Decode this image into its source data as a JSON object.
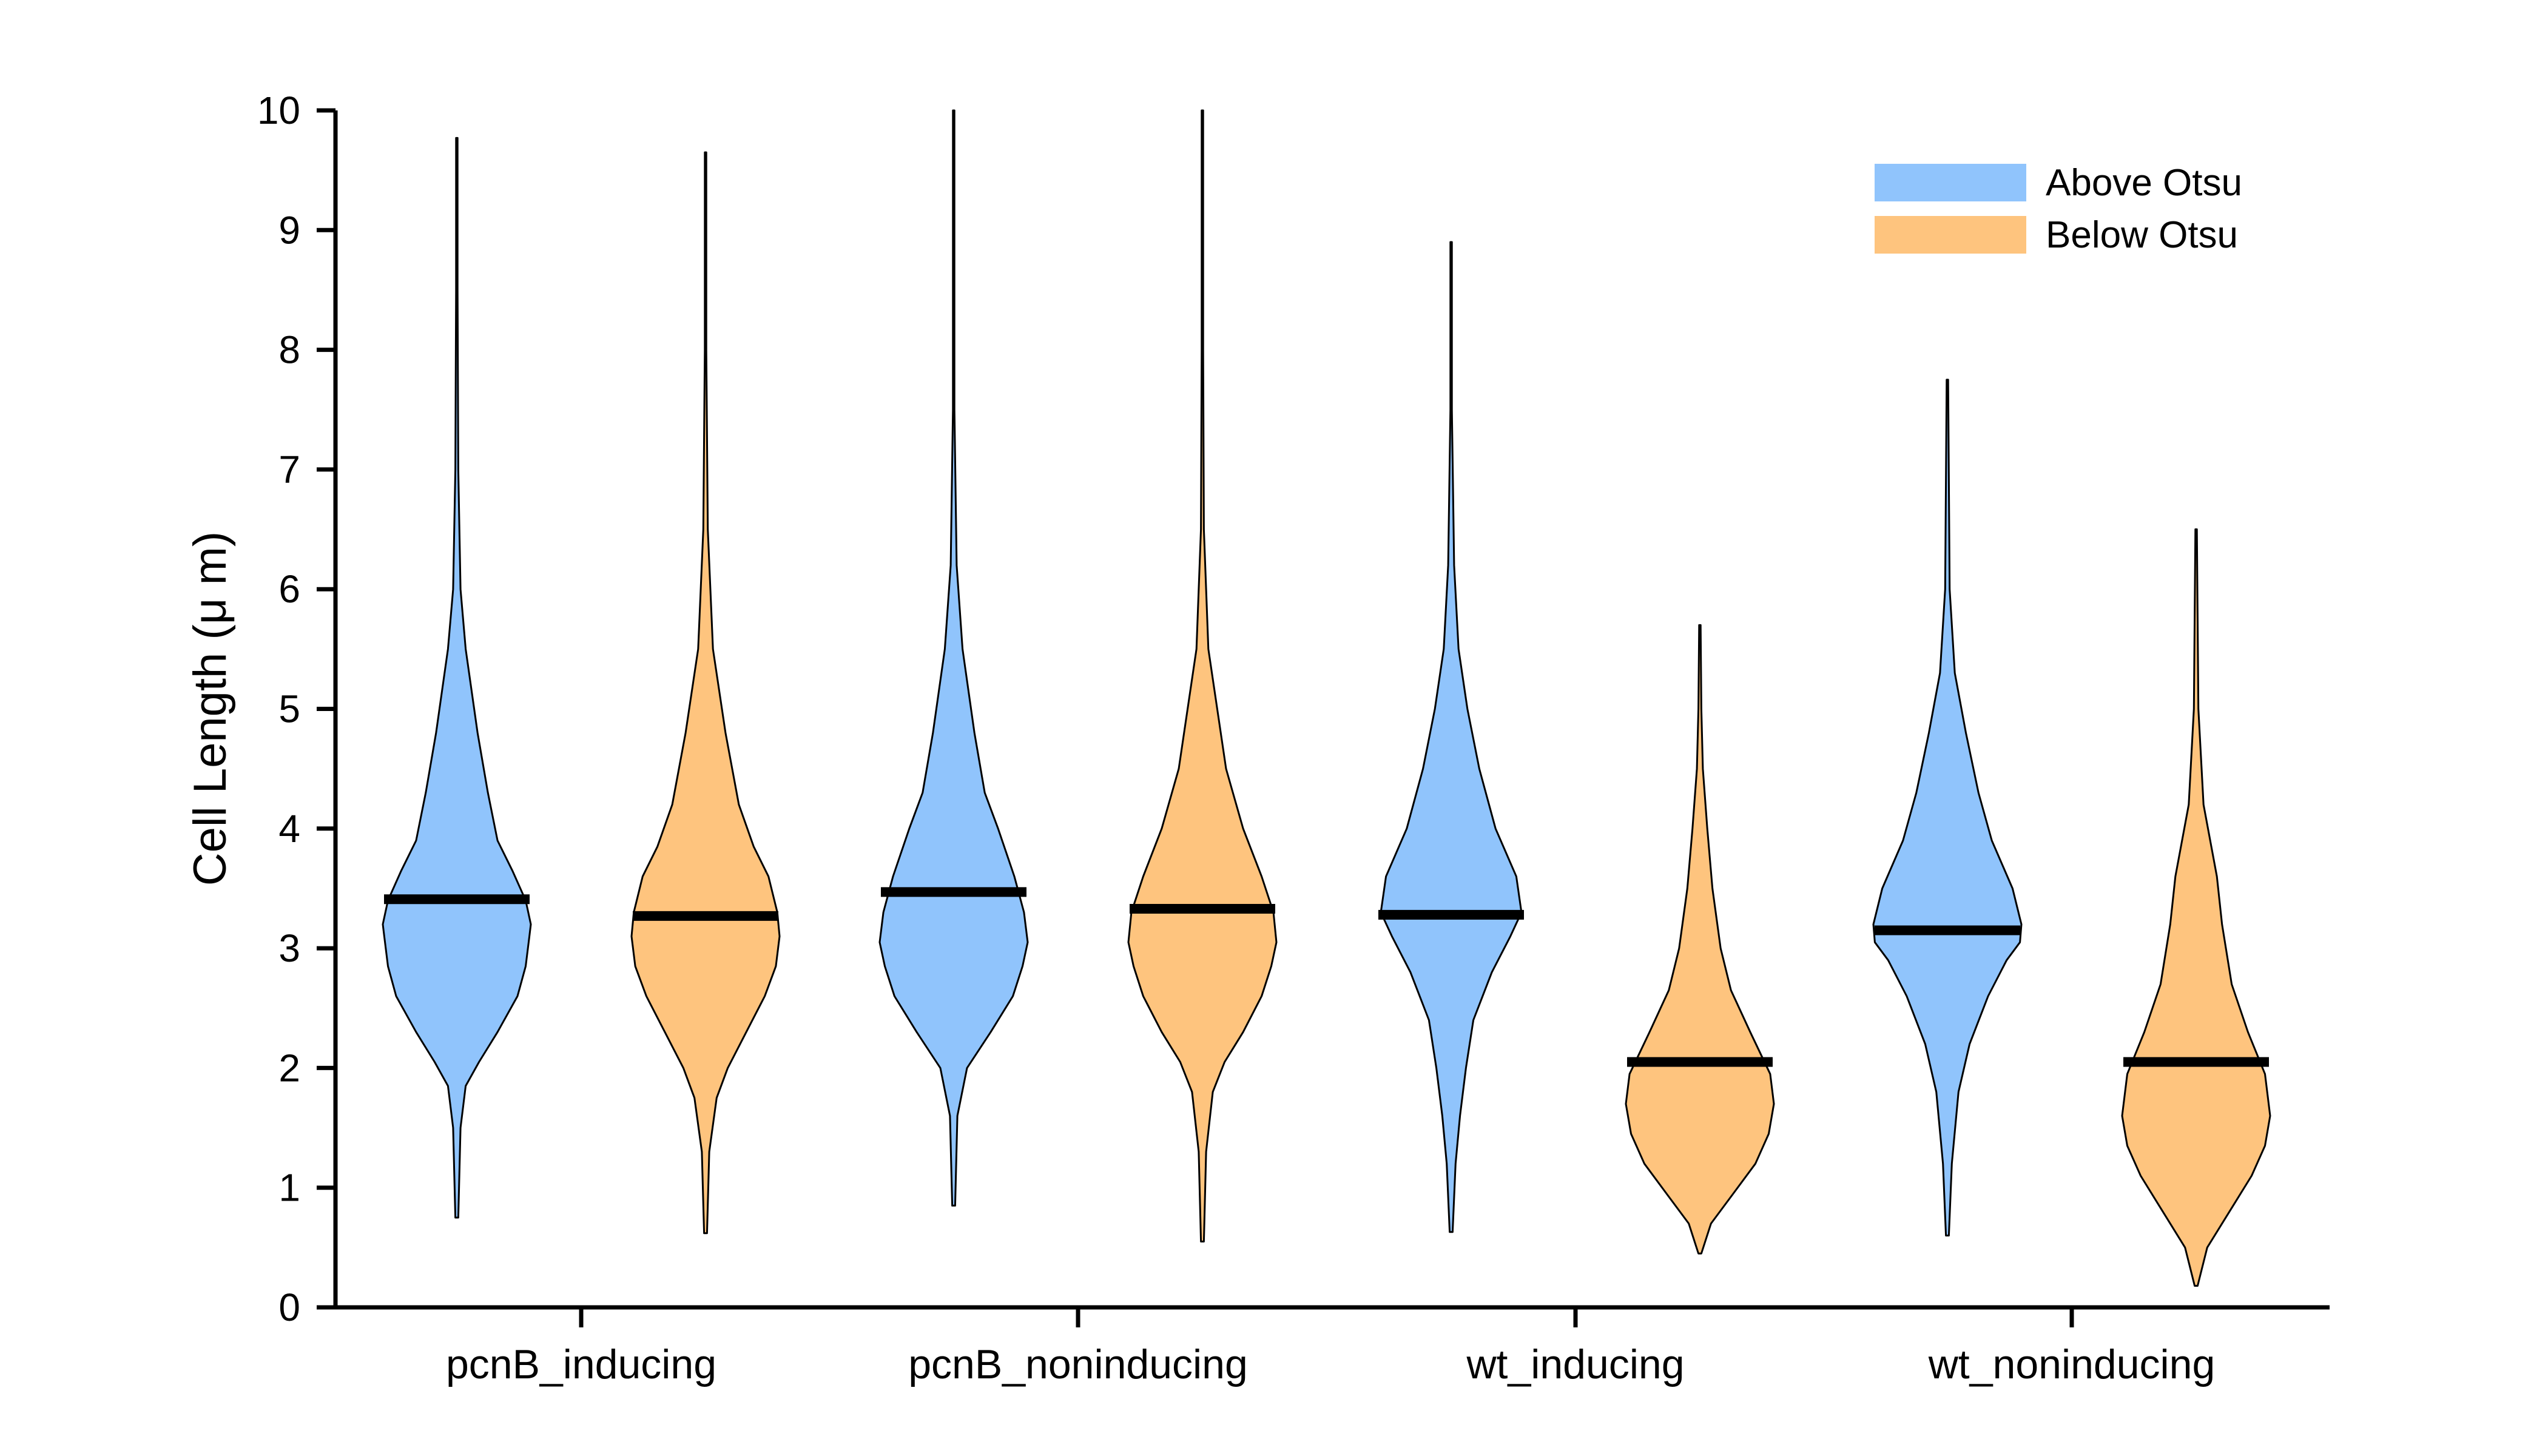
{
  "chart_data": {
    "type": "violin",
    "ylabel": "Cell Length (μ m)",
    "ylim": [
      0,
      10
    ],
    "yticks": [
      0,
      1,
      2,
      3,
      4,
      5,
      6,
      7,
      8,
      9,
      10
    ],
    "categories": [
      "pcnB_inducing",
      "pcnB_noninducing",
      "wt_inducing",
      "wt_noninducing"
    ],
    "legend": {
      "position": "top-right",
      "entries": [
        {
          "label": "Above Otsu",
          "color": "#90C4FC"
        },
        {
          "label": "Below Otsu",
          "color": "#FEC47E"
        }
      ]
    },
    "series": [
      {
        "category": "pcnB_inducing",
        "group": "Above Otsu",
        "color": "#90C4FC",
        "min": 0.75,
        "max": 9.77,
        "median": 3.41,
        "profile": [
          [
            0.75,
            0.02
          ],
          [
            1.5,
            0.05
          ],
          [
            1.85,
            0.12
          ],
          [
            2.05,
            0.3
          ],
          [
            2.3,
            0.55
          ],
          [
            2.6,
            0.82
          ],
          [
            2.85,
            0.93
          ],
          [
            3.1,
            0.98
          ],
          [
            3.2,
            1.0
          ],
          [
            3.4,
            0.93
          ],
          [
            3.65,
            0.75
          ],
          [
            3.9,
            0.55
          ],
          [
            4.3,
            0.42
          ],
          [
            4.8,
            0.28
          ],
          [
            5.5,
            0.12
          ],
          [
            6.0,
            0.05
          ],
          [
            7.0,
            0.02
          ],
          [
            8.5,
            0.01
          ],
          [
            9.77,
            0.005
          ]
        ]
      },
      {
        "category": "pcnB_inducing",
        "group": "Below Otsu",
        "color": "#FEC47E",
        "min": 0.62,
        "max": 9.65,
        "median": 3.27,
        "profile": [
          [
            0.62,
            0.02
          ],
          [
            1.3,
            0.05
          ],
          [
            1.75,
            0.15
          ],
          [
            2.0,
            0.3
          ],
          [
            2.3,
            0.55
          ],
          [
            2.6,
            0.8
          ],
          [
            2.85,
            0.95
          ],
          [
            3.1,
            1.0
          ],
          [
            3.3,
            0.97
          ],
          [
            3.6,
            0.85
          ],
          [
            3.85,
            0.65
          ],
          [
            4.2,
            0.45
          ],
          [
            4.8,
            0.27
          ],
          [
            5.5,
            0.1
          ],
          [
            6.5,
            0.03
          ],
          [
            8.0,
            0.01
          ],
          [
            9.65,
            0.005
          ]
        ]
      },
      {
        "category": "pcnB_noninducing",
        "group": "Above Otsu",
        "color": "#90C4FC",
        "min": 0.85,
        "max": 10.0,
        "median": 3.47,
        "profile": [
          [
            0.85,
            0.02
          ],
          [
            1.6,
            0.05
          ],
          [
            2.0,
            0.18
          ],
          [
            2.3,
            0.5
          ],
          [
            2.6,
            0.8
          ],
          [
            2.85,
            0.93
          ],
          [
            3.05,
            1.0
          ],
          [
            3.3,
            0.95
          ],
          [
            3.6,
            0.82
          ],
          [
            4.0,
            0.6
          ],
          [
            4.3,
            0.42
          ],
          [
            4.8,
            0.28
          ],
          [
            5.5,
            0.12
          ],
          [
            6.2,
            0.04
          ],
          [
            7.5,
            0.01
          ],
          [
            10.0,
            0.005
          ]
        ]
      },
      {
        "category": "pcnB_noninducing",
        "group": "Below Otsu",
        "color": "#FEC47E",
        "min": 0.55,
        "max": 10.0,
        "median": 3.33,
        "profile": [
          [
            0.55,
            0.02
          ],
          [
            1.3,
            0.05
          ],
          [
            1.8,
            0.14
          ],
          [
            2.05,
            0.3
          ],
          [
            2.3,
            0.55
          ],
          [
            2.6,
            0.8
          ],
          [
            2.85,
            0.93
          ],
          [
            3.05,
            1.0
          ],
          [
            3.3,
            0.96
          ],
          [
            3.6,
            0.8
          ],
          [
            4.0,
            0.55
          ],
          [
            4.5,
            0.32
          ],
          [
            5.0,
            0.2
          ],
          [
            5.5,
            0.08
          ],
          [
            6.5,
            0.02
          ],
          [
            8.0,
            0.01
          ],
          [
            10.0,
            0.005
          ]
        ]
      },
      {
        "category": "wt_inducing",
        "group": "Above Otsu",
        "color": "#90C4FC",
        "min": 0.63,
        "max": 8.9,
        "median": 3.28,
        "profile": [
          [
            0.63,
            0.02
          ],
          [
            1.2,
            0.06
          ],
          [
            1.6,
            0.12
          ],
          [
            2.0,
            0.2
          ],
          [
            2.4,
            0.3
          ],
          [
            2.8,
            0.55
          ],
          [
            3.1,
            0.8
          ],
          [
            3.3,
            0.95
          ],
          [
            3.6,
            0.88
          ],
          [
            4.0,
            0.6
          ],
          [
            4.5,
            0.38
          ],
          [
            5.0,
            0.22
          ],
          [
            5.5,
            0.1
          ],
          [
            6.2,
            0.04
          ],
          [
            7.5,
            0.01
          ],
          [
            8.9,
            0.005
          ]
        ]
      },
      {
        "category": "wt_inducing",
        "group": "Below Otsu",
        "color": "#FEC47E",
        "min": 0.45,
        "max": 5.7,
        "median": 2.05,
        "profile": [
          [
            0.45,
            0.02
          ],
          [
            0.7,
            0.15
          ],
          [
            0.95,
            0.45
          ],
          [
            1.2,
            0.75
          ],
          [
            1.45,
            0.93
          ],
          [
            1.7,
            1.0
          ],
          [
            1.95,
            0.95
          ],
          [
            2.3,
            0.68
          ],
          [
            2.65,
            0.42
          ],
          [
            3.0,
            0.28
          ],
          [
            3.5,
            0.17
          ],
          [
            4.0,
            0.1
          ],
          [
            4.5,
            0.04
          ],
          [
            5.0,
            0.02
          ],
          [
            5.7,
            0.005
          ]
        ]
      },
      {
        "category": "wt_noninducing",
        "group": "Above Otsu",
        "color": "#90C4FC",
        "min": 0.6,
        "max": 7.75,
        "median": 3.15,
        "profile": [
          [
            0.6,
            0.02
          ],
          [
            1.2,
            0.06
          ],
          [
            1.8,
            0.15
          ],
          [
            2.2,
            0.3
          ],
          [
            2.6,
            0.55
          ],
          [
            2.9,
            0.8
          ],
          [
            3.05,
            0.98
          ],
          [
            3.2,
            1.0
          ],
          [
            3.5,
            0.88
          ],
          [
            3.9,
            0.6
          ],
          [
            4.3,
            0.42
          ],
          [
            4.8,
            0.25
          ],
          [
            5.3,
            0.1
          ],
          [
            6.0,
            0.03
          ],
          [
            7.75,
            0.005
          ]
        ]
      },
      {
        "category": "wt_noninducing",
        "group": "Below Otsu",
        "color": "#FEC47E",
        "min": 0.18,
        "max": 6.5,
        "median": 2.05,
        "profile": [
          [
            0.18,
            0.02
          ],
          [
            0.5,
            0.15
          ],
          [
            0.8,
            0.45
          ],
          [
            1.1,
            0.75
          ],
          [
            1.35,
            0.93
          ],
          [
            1.6,
            1.0
          ],
          [
            1.95,
            0.93
          ],
          [
            2.3,
            0.7
          ],
          [
            2.7,
            0.48
          ],
          [
            3.2,
            0.35
          ],
          [
            3.6,
            0.28
          ],
          [
            4.2,
            0.1
          ],
          [
            5.0,
            0.03
          ],
          [
            6.5,
            0.005
          ]
        ]
      }
    ]
  }
}
